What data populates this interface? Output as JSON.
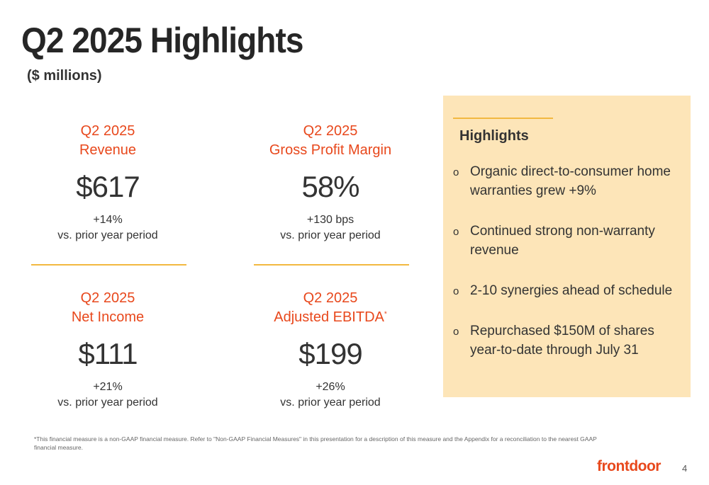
{
  "title": "Q2 2025 Highlights",
  "subtitle": "($ millions)",
  "metrics": [
    {
      "label_line1": "Q2 2025",
      "label_line2": "Revenue",
      "value": "$617",
      "change_line1": "+14%",
      "change_line2": "vs. prior year period"
    },
    {
      "label_line1": "Q2 2025",
      "label_line2": "Gross Profit Margin",
      "value": "58%",
      "change_line1": "+130 bps",
      "change_line2": "vs. prior year period"
    },
    {
      "label_line1": "Q2 2025",
      "label_line2": "Net Income",
      "value": "$111",
      "change_line1": "+21%",
      "change_line2": "vs. prior year period"
    },
    {
      "label_line1": "Q2 2025",
      "label_line2": "Adjusted EBITDA",
      "label_mark": "*",
      "value": "$199",
      "change_line1": "+26%",
      "change_line2": "vs. prior year period"
    }
  ],
  "highlights": {
    "heading": "Highlights",
    "bullet_glyph": "o",
    "items": [
      "Organic direct-to-consumer home warranties grew +9%",
      "Continued strong non-warranty revenue",
      "2-10 synergies ahead of schedule",
      "Repurchased $150M of shares year-to-date through July 31"
    ]
  },
  "footnote": "*This financial measure is a non-GAAP financial measure. Refer to \"Non-GAAP Financial Measures\" in this presentation for a description of this measure and the Appendix for a reconciliation to the nearest GAAP financial measure.",
  "logo": "frontdoor",
  "page_number": "4",
  "colors": {
    "accent": "#e8481c",
    "rule": "#f2b840",
    "panel": "#fde5b8"
  }
}
